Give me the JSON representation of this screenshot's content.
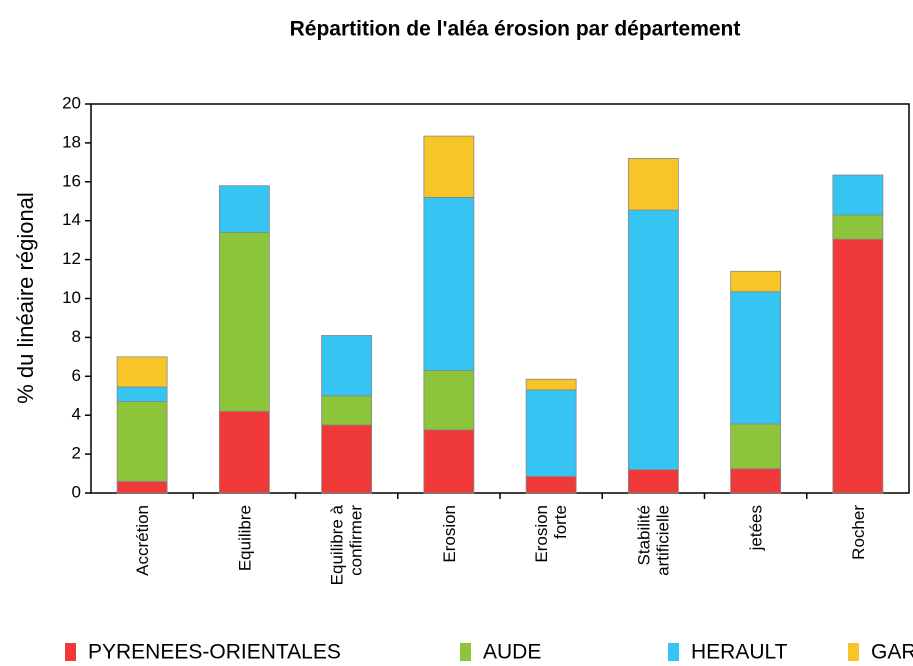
{
  "chart_data": {
    "type": "stacked_bar",
    "title": "Répartition de l'aléa érosion par département",
    "y_label": "% du linéaire régional",
    "categories": [
      "Accrétion",
      "Equilibre",
      "Equilibre à confirmer",
      "Erosion",
      "Erosion forte",
      "Stabilité artificielle",
      "jetées",
      "Rocher"
    ],
    "series": [
      {
        "name": "PYRENEES-ORIENTALES",
        "color": "#f03a3a",
        "values": [
          0.6,
          4.2,
          3.5,
          3.25,
          0.85,
          1.2,
          1.25,
          13.05
        ]
      },
      {
        "name": "AUDE",
        "color": "#8cc43a",
        "values": [
          4.1,
          9.2,
          1.5,
          3.05,
          0,
          0,
          2.3,
          1.25
        ]
      },
      {
        "name": "HERAULT",
        "color": "#36c4f2",
        "values": [
          0.75,
          2.4,
          3.1,
          8.9,
          4.45,
          13.35,
          6.8,
          2.05
        ]
      },
      {
        "name": "GARD",
        "color": "#f8c528",
        "values": [
          1.55,
          0,
          0,
          3.15,
          0.55,
          2.65,
          1.05,
          0
        ]
      }
    ],
    "ylim": [
      0,
      20
    ],
    "yticks": [
      0,
      2,
      4,
      6,
      8,
      10,
      12,
      14,
      16,
      18,
      20
    ],
    "legend": "bottom"
  }
}
